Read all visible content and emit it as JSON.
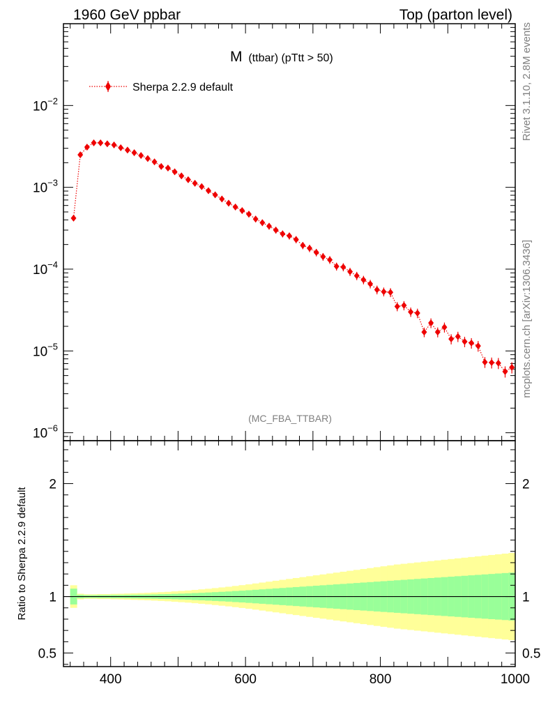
{
  "header": {
    "left": "1960 GeV ppbar",
    "right": "Top (parton level)"
  },
  "plot_title": {
    "main": "M",
    "sub": "(ttbar) (pTtt > 50)"
  },
  "side_labels": {
    "rivet": "Rivet 3.1.10,  2.8M events",
    "mcplots": "mcplots.cern.ch [arXiv:1306.3436]"
  },
  "analysis_tag": "(MC_FBA_TTBAR)",
  "colors": {
    "series": "#ee0000",
    "band_inner": "#99ff99",
    "band_outer": "#ffff99"
  },
  "chart_data": [
    {
      "type": "line",
      "scale": "log-y",
      "legend": {
        "position": "top-left",
        "entries": [
          "Sherpa 2.2.9 default"
        ]
      },
      "xlim": [
        330,
        1000
      ],
      "ylim": [
        8e-07,
        0.1
      ],
      "y_ticks": [
        {
          "value": 1e-06,
          "mant": "10",
          "exp": "−6"
        },
        {
          "value": 1e-05,
          "mant": "10",
          "exp": "−5"
        },
        {
          "value": 0.0001,
          "mant": "10",
          "exp": "−4"
        },
        {
          "value": 0.001,
          "mant": "10",
          "exp": "−3"
        },
        {
          "value": 0.01,
          "mant": "10",
          "exp": "−2"
        }
      ],
      "series": [
        {
          "name": "Sherpa 2.2.9 default",
          "x": [
            345,
            355,
            365,
            375,
            385,
            395,
            405,
            415,
            425,
            435,
            445,
            455,
            465,
            475,
            485,
            495,
            505,
            515,
            525,
            535,
            545,
            555,
            565,
            575,
            585,
            595,
            605,
            615,
            625,
            635,
            645,
            655,
            665,
            675,
            685,
            695,
            705,
            715,
            725,
            735,
            745,
            755,
            765,
            775,
            785,
            795,
            805,
            815,
            825,
            835,
            845,
            855,
            865,
            875,
            885,
            895,
            905,
            915,
            925,
            935,
            945,
            955,
            965,
            975,
            985,
            995
          ],
          "y": [
            0.00042,
            0.0025,
            0.0031,
            0.0035,
            0.0035,
            0.0034,
            0.0033,
            0.00305,
            0.00285,
            0.00265,
            0.00245,
            0.00225,
            0.00205,
            0.0018,
            0.00172,
            0.00155,
            0.00138,
            0.00124,
            0.00112,
            0.00102,
            0.00091,
            0.00081,
            0.00072,
            0.00064,
            0.000575,
            0.00052,
            0.00047,
            0.00041,
            0.00037,
            0.000335,
            0.0003,
            0.00027,
            0.000255,
            0.00023,
            0.000195,
            0.00018,
            0.00016,
            0.000142,
            0.00013,
            0.000108,
            0.000106,
            9.3e-05,
            8.3e-05,
            7.4e-05,
            6.6e-05,
            5.6e-05,
            5.3e-05,
            5.2e-05,
            3.5e-05,
            3.6e-05,
            3e-05,
            2.9e-05,
            1.7e-05,
            2.2e-05,
            1.7e-05,
            1.95e-05,
            1.4e-05,
            1.5e-05,
            1.3e-05,
            1.25e-05,
            1.15e-05,
            7.3e-06,
            7.2e-06,
            7.1e-06,
            5.6e-06,
            6.3e-06
          ]
        }
      ]
    },
    {
      "type": "area",
      "ylabel": "Ratio to Sherpa 2.2.9 default",
      "xlim": [
        330,
        1000
      ],
      "ylim": [
        0.38,
        2.38
      ],
      "x_ticks": [
        400,
        600,
        800,
        1000
      ],
      "y_ticks": [
        {
          "value": 0.5,
          "label": "0.5"
        },
        {
          "value": 1,
          "label": "1"
        },
        {
          "value": 2,
          "label": "2"
        }
      ],
      "reference_line": 1,
      "bins": [
        340,
        350,
        360,
        370,
        380,
        390,
        400,
        410,
        420,
        430,
        440,
        450,
        460,
        470,
        480,
        490,
        500,
        510,
        520,
        530,
        540,
        550,
        560,
        570,
        580,
        590,
        600,
        610,
        620,
        630,
        640,
        650,
        660,
        670,
        680,
        690,
        700,
        710,
        720,
        730,
        740,
        750,
        760,
        770,
        780,
        790,
        800,
        810,
        820,
        830,
        840,
        850,
        860,
        870,
        880,
        890,
        900,
        910,
        920,
        930,
        940,
        950,
        960,
        970,
        980,
        990,
        1000
      ],
      "inner_band": [
        0.07,
        0.015,
        0.012,
        0.012,
        0.013,
        0.013,
        0.014,
        0.014,
        0.015,
        0.016,
        0.017,
        0.018,
        0.019,
        0.021,
        0.022,
        0.024,
        0.026,
        0.028,
        0.031,
        0.033,
        0.036,
        0.039,
        0.042,
        0.045,
        0.049,
        0.052,
        0.056,
        0.06,
        0.064,
        0.068,
        0.072,
        0.076,
        0.08,
        0.084,
        0.088,
        0.092,
        0.096,
        0.1,
        0.104,
        0.108,
        0.112,
        0.116,
        0.12,
        0.124,
        0.128,
        0.132,
        0.136,
        0.14,
        0.144,
        0.148,
        0.152,
        0.156,
        0.16,
        0.164,
        0.168,
        0.172,
        0.176,
        0.18,
        0.184,
        0.188,
        0.192,
        0.196,
        0.2,
        0.204,
        0.208,
        0.212
      ],
      "outer_band": [
        0.1,
        0.025,
        0.02,
        0.02,
        0.022,
        0.022,
        0.024,
        0.025,
        0.027,
        0.029,
        0.031,
        0.033,
        0.036,
        0.039,
        0.042,
        0.046,
        0.05,
        0.054,
        0.059,
        0.064,
        0.069,
        0.075,
        0.081,
        0.087,
        0.094,
        0.101,
        0.108,
        0.116,
        0.124,
        0.132,
        0.14,
        0.148,
        0.156,
        0.164,
        0.172,
        0.18,
        0.188,
        0.196,
        0.204,
        0.212,
        0.22,
        0.228,
        0.236,
        0.244,
        0.252,
        0.26,
        0.268,
        0.276,
        0.284,
        0.29,
        0.296,
        0.302,
        0.308,
        0.314,
        0.32,
        0.326,
        0.332,
        0.338,
        0.344,
        0.35,
        0.356,
        0.362,
        0.368,
        0.374,
        0.38,
        0.386
      ]
    }
  ]
}
